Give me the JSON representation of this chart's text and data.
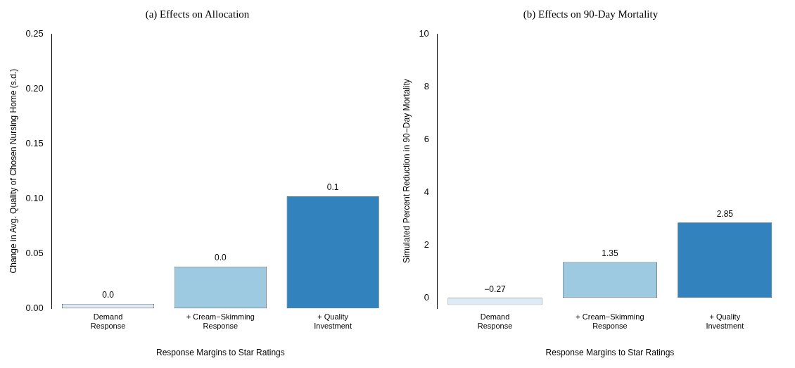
{
  "chart_data": [
    {
      "type": "bar",
      "title": "(a) Effects on Allocation",
      "xlabel": "Response Margins to Star Ratings",
      "ylabel": "Change in Avg. Quality of Chosen Nursing Home (s.d.)",
      "categories": [
        "Demand\nResponse",
        "+ Cream−Skimming\nResponse",
        "+ Quality\nInvestment"
      ],
      "values": [
        0.004,
        0.038,
        0.102
      ],
      "value_labels": [
        "0.0",
        "0.0",
        "0.1"
      ],
      "colors": [
        "#deebf7",
        "#9ecae1",
        "#3182bd"
      ],
      "ylim": [
        0,
        0.25
      ],
      "yticks": [
        {
          "value": 0,
          "label": "0.00"
        },
        {
          "value": 0.05,
          "label": "0.05"
        },
        {
          "value": 0.1,
          "label": "0.10"
        },
        {
          "value": 0.15,
          "label": "0.15"
        },
        {
          "value": 0.2,
          "label": "0.20"
        },
        {
          "value": 0.25,
          "label": "0.25"
        }
      ],
      "grid": false,
      "legend": false
    },
    {
      "type": "bar",
      "title": "(b) Effects on 90-Day Mortality",
      "xlabel": "Response Margins to Star Ratings",
      "ylabel": "Simulated Percent Reduction in 90−Day Mortality",
      "categories": [
        "Demand\nResponse",
        "+ Cream−Skimming\nResponse",
        "+ Quality\nInvestment"
      ],
      "values": [
        -0.27,
        1.35,
        2.85
      ],
      "value_labels": [
        "−0.27",
        "1.35",
        "2.85"
      ],
      "colors": [
        "#deebf7",
        "#9ecae1",
        "#3182bd"
      ],
      "ylim": [
        -0.4,
        10
      ],
      "yticks": [
        0,
        2,
        4,
        6,
        8,
        10
      ],
      "grid": false,
      "legend": false
    }
  ]
}
